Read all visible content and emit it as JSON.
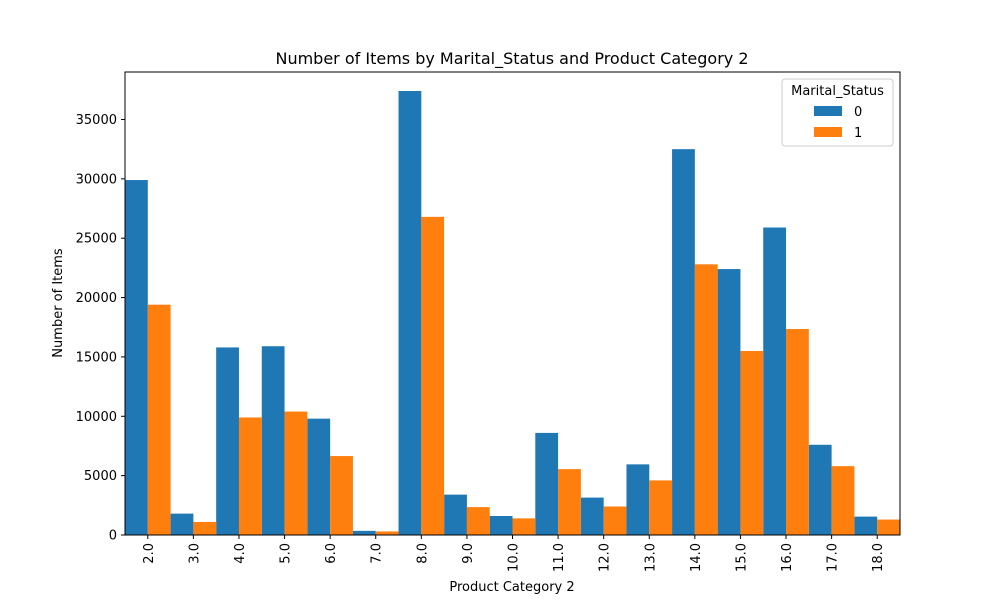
{
  "chart_data": {
    "type": "bar",
    "title": "Number of Items by Marital_Status and Product Category 2",
    "xlabel": "Product Category 2",
    "ylabel": "Number of Items",
    "ylim": [
      0,
      39000
    ],
    "yticks": [
      0,
      5000,
      10000,
      15000,
      20000,
      25000,
      30000,
      35000
    ],
    "grid": false,
    "legend": {
      "title": "Marital_Status",
      "position": "top-right"
    },
    "categories": [
      "2.0",
      "3.0",
      "4.0",
      "5.0",
      "6.0",
      "7.0",
      "8.0",
      "9.0",
      "10.0",
      "11.0",
      "12.0",
      "13.0",
      "14.0",
      "15.0",
      "16.0",
      "17.0",
      "18.0"
    ],
    "series": [
      {
        "name": "0",
        "color": "#1f77b4",
        "values": [
          29900,
          1800,
          15800,
          15900,
          9800,
          350,
          37400,
          3400,
          1600,
          8600,
          3150,
          5950,
          32500,
          22400,
          25900,
          7600,
          1550
        ]
      },
      {
        "name": "1",
        "color": "#ff7f0e",
        "values": [
          19400,
          1100,
          9900,
          10400,
          6650,
          300,
          26800,
          2350,
          1400,
          5550,
          2400,
          4600,
          22800,
          15500,
          17350,
          5800,
          1300
        ]
      }
    ]
  }
}
